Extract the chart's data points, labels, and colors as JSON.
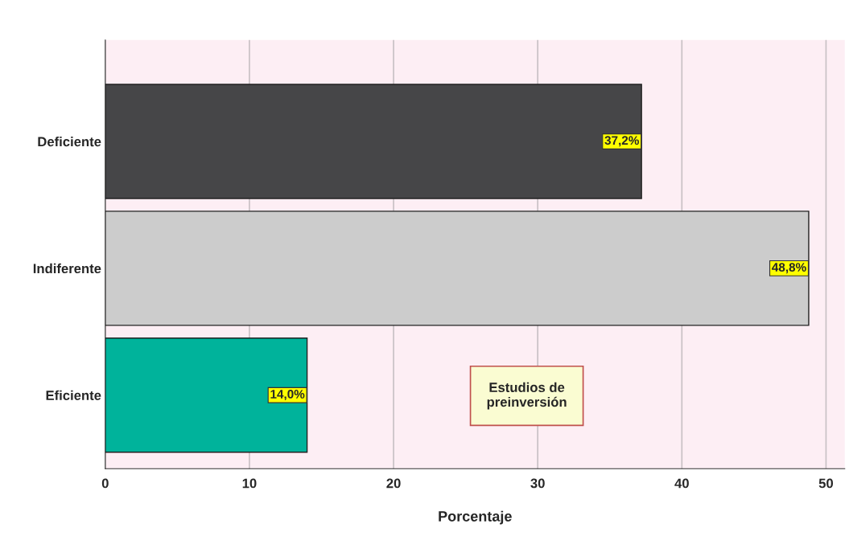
{
  "chart_data": {
    "type": "bar",
    "orientation": "horizontal",
    "xlabel": "Porcentaje",
    "categories": [
      "Deficiente",
      "Indiferente",
      "Eficiente"
    ],
    "values": [
      37.2,
      48.8,
      14.0
    ],
    "colors": [
      "#464648",
      "#cccccc",
      "#00b39b"
    ],
    "value_labels": [
      "37,2%",
      "48,8%",
      "14,0%"
    ],
    "xlim": [
      0,
      51.3
    ],
    "xticks": [
      0,
      10,
      20,
      30,
      40,
      50
    ],
    "grid": "x",
    "annotations": [
      "Estudios de\npreinversión"
    ]
  }
}
